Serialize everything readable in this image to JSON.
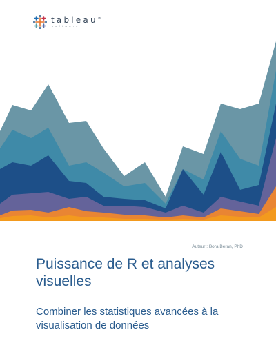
{
  "brand": {
    "name": "tableau",
    "tagline": "software",
    "registered": "®",
    "colors": {
      "blue": "#1e6fb4",
      "orange": "#ef8a2a",
      "red": "#d63b3b",
      "teal": "#5aa0a8"
    }
  },
  "document": {
    "author": "Auteur : Bora Beran, PhD",
    "title": "Puissance de R et analyses visuelles",
    "subtitle": "Combiner les statistiques avancées à la visualisation de données"
  },
  "artwork": {
    "type": "stacked-area",
    "colors": [
      "#f39a1e",
      "#e98533",
      "#64639a",
      "#1d4f88",
      "#3f8aa8",
      "#6a96a6"
    ]
  }
}
